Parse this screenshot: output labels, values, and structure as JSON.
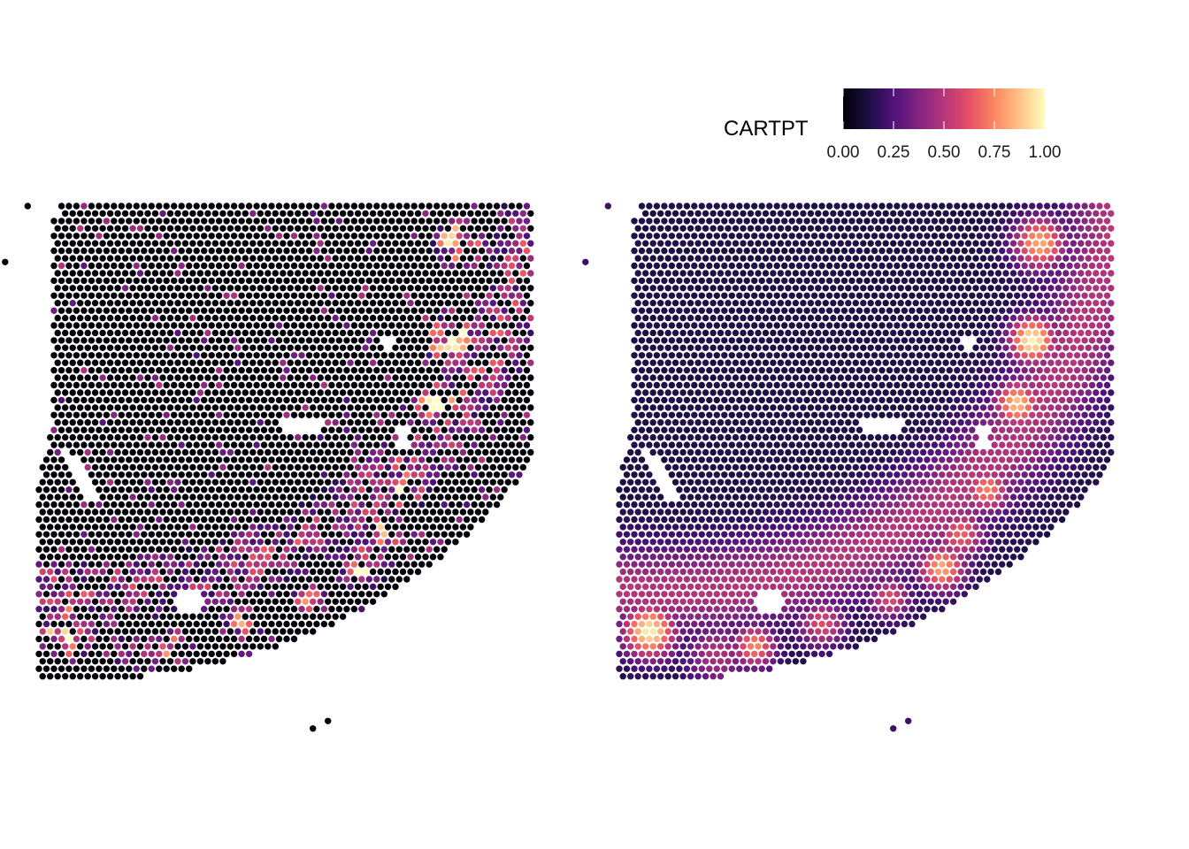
{
  "chart_data": {
    "type": "heatmap",
    "description": "",
    "panels": [
      {
        "name": "",
        "smoothed": false
      },
      {
        "name": "",
        "smoothed": true
      }
    ],
    "legend": {
      "title": "CARTPT",
      "placement": "top-right",
      "scale": "magma",
      "range": [
        0,
        1
      ],
      "ticks": [
        "0.00",
        "0.25",
        "0.50",
        "0.75",
        "1.00"
      ],
      "tick_values": [
        0,
        0.25,
        0.5,
        0.75,
        1.0
      ]
    },
    "colors": {
      "magma_stops": [
        "#000004",
        "#1c1044",
        "#4f127b",
        "#812581",
        "#b5367a",
        "#e55064",
        "#fb8761",
        "#fec287",
        "#fcfdbf"
      ],
      "background": "#ffffff"
    },
    "tissue": {
      "rows": 66,
      "cols": 66,
      "holes": [
        {
          "r": 29.5,
          "c": 35,
          "rr": 1.2,
          "rc": 3
        },
        {
          "r": 31,
          "c": 48.5,
          "rr": 1.2,
          "rc": 1
        },
        {
          "r": 18.5,
          "c": 46.5,
          "rr": 0.7,
          "rc": 0.8
        },
        {
          "r": 53,
          "c": 20,
          "rr": 1.3,
          "rc": 2
        }
      ],
      "hotspots_smoothed": [
        {
          "r": 18,
          "c": 55,
          "v": 0.98,
          "s": 2.2
        },
        {
          "r": 26.5,
          "c": 53,
          "v": 0.85,
          "s": 2.2
        },
        {
          "r": 5,
          "c": 56,
          "v": 0.8,
          "s": 2.5
        },
        {
          "r": 38,
          "c": 49,
          "v": 0.7,
          "s": 2.2
        },
        {
          "r": 48.5,
          "c": 43,
          "v": 0.8,
          "s": 2.2
        },
        {
          "r": 44,
          "c": 45.5,
          "v": 0.62,
          "s": 2.3
        },
        {
          "r": 52.5,
          "c": 36,
          "v": 0.55,
          "s": 2.0
        },
        {
          "r": 56,
          "c": 27,
          "v": 0.55,
          "s": 2.2
        },
        {
          "r": 59,
          "c": 18,
          "v": 0.72,
          "s": 2.0
        },
        {
          "r": 57,
          "c": 4,
          "v": 0.96,
          "s": 2.5
        },
        {
          "r": 60,
          "c": 13,
          "v": 0.4,
          "s": 3
        }
      ],
      "stray_spots": [
        {
          "r": 0,
          "c": -1.5
        },
        {
          "r": 7.5,
          "c": -4.5
        },
        {
          "r": 69,
          "c": 38.5
        },
        {
          "r": 70,
          "c": 36.5
        }
      ]
    }
  }
}
